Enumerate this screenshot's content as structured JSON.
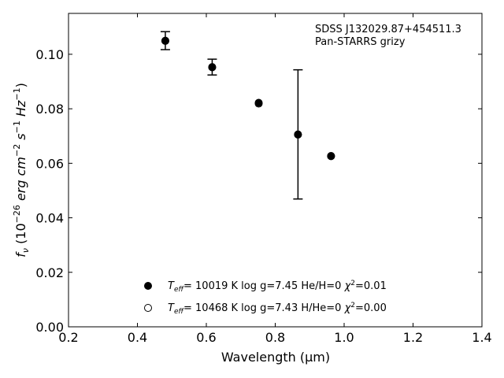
{
  "chart_data": {
    "type": "scatter",
    "annotation": [
      "SDSS J132029.87+454511.3",
      "Pan-STARRS grizy"
    ],
    "xlim": [
      0.2,
      1.4
    ],
    "ylim": [
      0.0,
      0.115
    ],
    "xticks": [
      "0.2",
      "0.4",
      "0.6",
      "0.8",
      "1.0",
      "1.2",
      "1.4"
    ],
    "yticks": [
      "0.00",
      "0.02",
      "0.04",
      "0.06",
      "0.08",
      "0.10"
    ],
    "xlabel": "Wavelength (μm)",
    "ylabel": {
      "prefix": "f",
      "sub": "ν",
      "text": " (10",
      "e1": "−26",
      "unit": " erg cm",
      "e2": "−2",
      "s": " s",
      "e3": "−1",
      "hz": " Hz",
      "e4": "−1",
      "close": ")"
    },
    "legend_position": "lower center",
    "observed": {
      "x": [
        0.481,
        0.617,
        0.752,
        0.866,
        0.962
      ],
      "y": [
        0.105,
        0.0953,
        0.0822,
        0.0706,
        0.0627
      ],
      "yerr": [
        0.0033,
        0.0029,
        0.0,
        0.0237,
        0.0
      ]
    },
    "series": [
      {
        "name": "Teff= 10019 K  log g=7.45  He/H=0  χ2=0.01",
        "label": {
          "t": "T",
          "eff": "eff",
          "rest1": "= 10019 K  log g=7.45  He/H=0  ",
          "chi": "χ",
          "sq": "2",
          "rest2": "=0.01"
        },
        "marker": "filled",
        "x": [
          0.481,
          0.617,
          0.752,
          0.866,
          0.962
        ],
        "y": [
          0.105,
          0.0953,
          0.0822,
          0.0706,
          0.0627
        ]
      },
      {
        "name": "Teff= 10468 K  log g=7.43  H/He=0  χ2=0.00",
        "label": {
          "t": "T",
          "eff": "eff",
          "rest1": "= 10468 K  log g=7.43  H/He=0  ",
          "chi": "χ",
          "sq": "2",
          "rest2": "=0.00"
        },
        "marker": "open",
        "x": [
          0.481,
          0.617,
          0.752,
          0.866,
          0.962
        ],
        "y": [
          0.1049,
          0.0952,
          0.0819,
          0.0705,
          0.0626
        ]
      }
    ]
  }
}
